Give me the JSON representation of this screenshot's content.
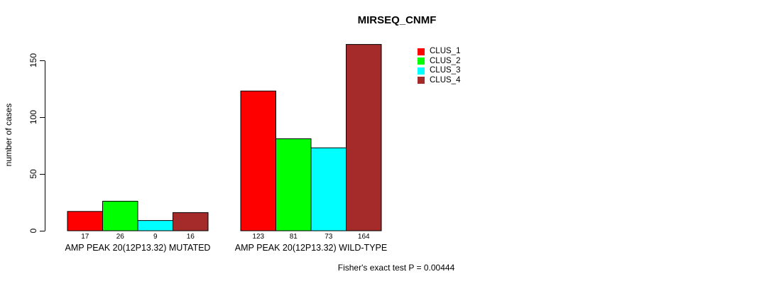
{
  "chart_data": {
    "type": "bar",
    "title": "MIRSEQ_CNMF",
    "ylabel": "number of cases",
    "xlabel": "",
    "yticks": [
      0,
      50,
      100,
      150
    ],
    "ylim": [
      0,
      170
    ],
    "grid": false,
    "legend_position": "top-right",
    "bar_border_color": "#000000",
    "background_color": "#ffffff",
    "categories": [
      "AMP PEAK 20(12P13.32) MUTATED",
      "AMP PEAK 20(12P13.32) WILD-TYPE"
    ],
    "series": [
      {
        "name": "CLUS_1",
        "color": "#ff0000",
        "values": [
          17,
          123
        ]
      },
      {
        "name": "CLUS_2",
        "color": "#00ff00",
        "values": [
          26,
          81
        ]
      },
      {
        "name": "CLUS_3",
        "color": "#00ffff",
        "values": [
          9,
          73
        ]
      },
      {
        "name": "CLUS_4",
        "color": "#a52a2a",
        "values": [
          16,
          164
        ]
      }
    ],
    "annotation": "Fisher's exact test P = 0.00444"
  }
}
